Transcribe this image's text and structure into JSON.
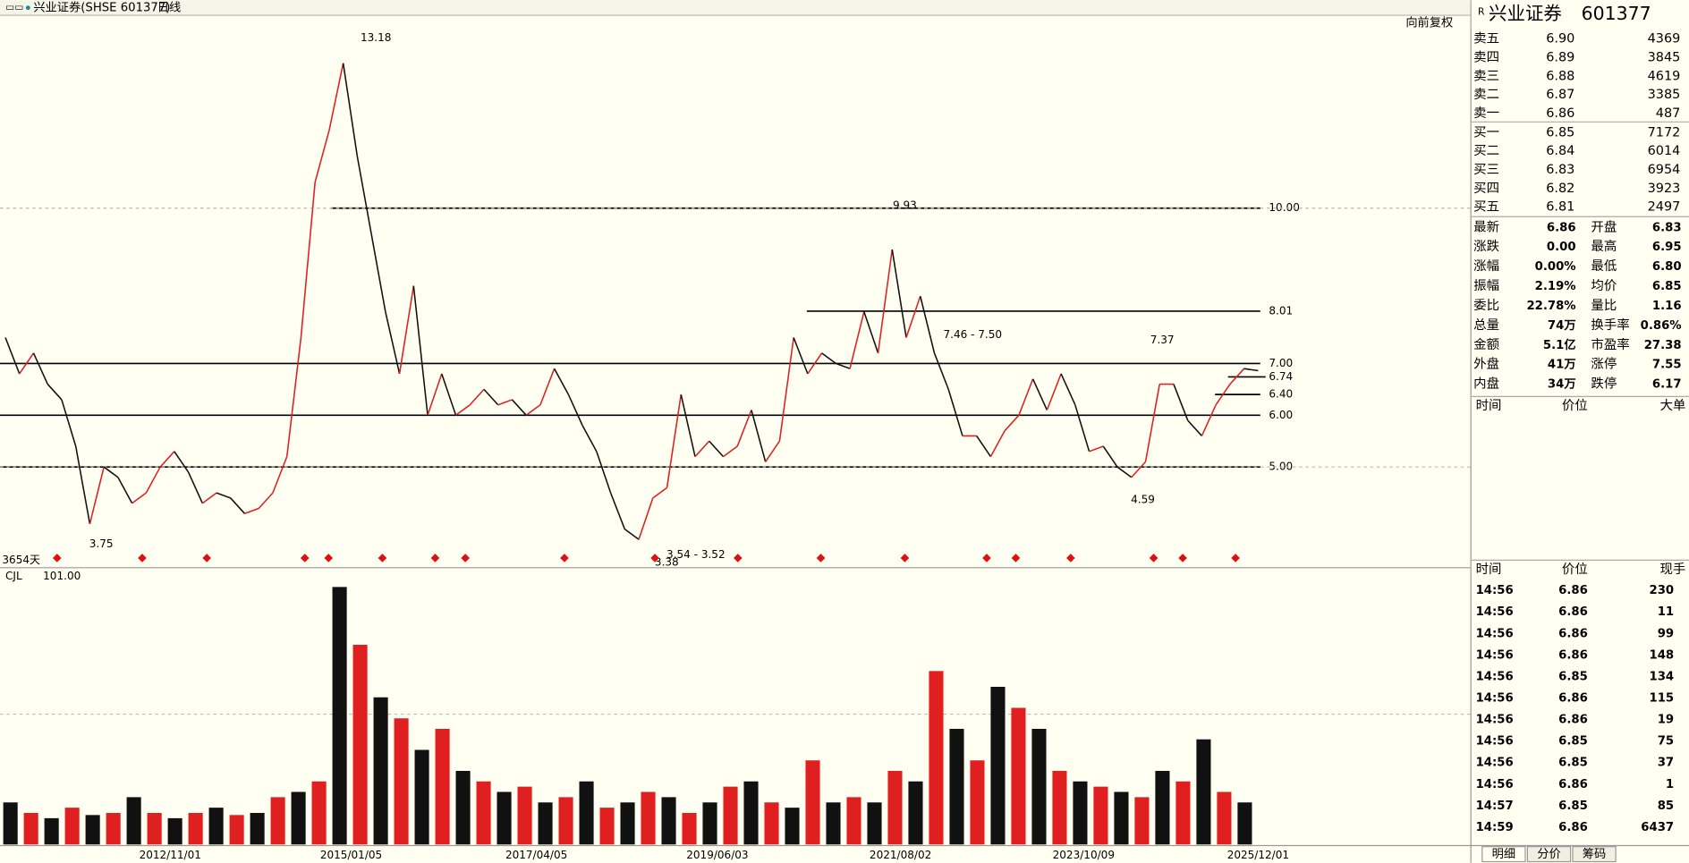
{
  "header": {
    "symbol": "兴业证券(SHSE 601377)",
    "period": "日线",
    "adjust": "向前复权"
  },
  "price_chart": {
    "days": "3654天",
    "close": [
      7.5,
      6.8,
      7.2,
      6.6,
      6.3,
      5.4,
      3.9,
      5.0,
      4.8,
      4.3,
      4.5,
      5.0,
      5.3,
      4.9,
      4.3,
      4.5,
      4.4,
      4.1,
      4.2,
      4.5,
      5.2,
      7.5,
      10.5,
      11.5,
      12.8,
      11.0,
      9.5,
      8.0,
      6.8,
      8.5,
      6.0,
      6.8,
      6.0,
      6.2,
      6.5,
      6.2,
      6.3,
      6.0,
      6.2,
      6.9,
      6.4,
      5.8,
      5.3,
      4.5,
      3.8,
      3.6,
      4.4,
      4.6,
      6.4,
      5.2,
      5.5,
      5.2,
      5.4,
      6.1,
      5.1,
      5.5,
      7.5,
      6.8,
      7.2,
      7.0,
      6.9,
      8.0,
      7.2,
      9.2,
      7.5,
      8.3,
      7.2,
      6.5,
      5.6,
      5.6,
      5.2,
      5.7,
      6.0,
      6.7,
      6.1,
      6.8,
      6.2,
      5.3,
      5.4,
      5.0,
      4.8,
      5.1,
      6.6,
      6.6,
      5.9,
      5.6,
      6.2,
      6.6,
      6.9,
      6.86
    ],
    "ylim": [
      3.2,
      13.6
    ],
    "yticks": [
      {
        "value": 10,
        "label": "10.00"
      },
      {
        "value": 8.01,
        "label": "8.01"
      },
      {
        "value": 7,
        "label": "7.00"
      },
      {
        "value": 6.74,
        "label": "6.74"
      },
      {
        "value": 6.4,
        "label": "6.40"
      },
      {
        "value": 6,
        "label": "6.00"
      },
      {
        "value": 5,
        "label": "5.00"
      }
    ],
    "annotations": [
      "13.18",
      "9.93",
      "7.37",
      "3.75",
      "3.38",
      "3.54 - 3.52",
      "4.59",
      "7.46 - 7.50"
    ],
    "dates": [
      "2012/11/01",
      "2015/01/05",
      "2017/04/05",
      "2019/06/03",
      "2021/08/02",
      "2023/10/09",
      "2025/12/01"
    ]
  },
  "volume_chart": {
    "indicator": "CJL",
    "value": "101.00",
    "ylim": [
      0,
      250
    ],
    "values": [
      40,
      30,
      25,
      35,
      28,
      30,
      45,
      30,
      25,
      30,
      35,
      28,
      30,
      45,
      50,
      60,
      245,
      190,
      140,
      120,
      90,
      110,
      70,
      60,
      50,
      55,
      40,
      45,
      60,
      35,
      40,
      50,
      45,
      30,
      40,
      55,
      60,
      40,
      35,
      80,
      40,
      45,
      40,
      70,
      60,
      165,
      110,
      80,
      150,
      130,
      110,
      70,
      60,
      55,
      50,
      45,
      70,
      60,
      100,
      50,
      40
    ]
  },
  "quote_panel": {
    "title": "兴业证券",
    "code": "601377",
    "order_book": [
      {
        "label": "卖五",
        "price": "6.90",
        "volume": "4369",
        "color": "#d83030"
      },
      {
        "label": "卖四",
        "price": "6.89",
        "volume": "3845",
        "color": "#d83030"
      },
      {
        "label": "卖三",
        "price": "6.88",
        "volume": "4619",
        "color": "#d83030"
      },
      {
        "label": "卖二",
        "price": "6.87",
        "volume": "3385",
        "color": "#d83030"
      },
      {
        "label": "卖一",
        "price": "6.86",
        "volume": "487",
        "color": "#000000"
      },
      {
        "label": "买一",
        "price": "6.85",
        "volume": "7172",
        "color": "#1a8796"
      },
      {
        "label": "买二",
        "price": "6.84",
        "volume": "6014",
        "color": "#1a8796"
      },
      {
        "label": "买三",
        "price": "6.83",
        "volume": "6954",
        "color": "#1a8796"
      },
      {
        "label": "买四",
        "price": "6.82",
        "volume": "3923",
        "color": "#1a8796"
      },
      {
        "label": "买五",
        "price": "6.81",
        "volume": "2497",
        "color": "#1a8796"
      }
    ],
    "stats": [
      [
        "最新",
        "6.86",
        "#000000",
        "开盘",
        "6.83",
        "#1a8796"
      ],
      [
        "涨跌",
        "0.00",
        "#000000",
        "最高",
        "6.95",
        "#d83030"
      ],
      [
        "涨幅",
        "0.00%",
        "#000000",
        "最低",
        "6.80",
        "#1a8796"
      ],
      [
        "振幅",
        "2.19%",
        "#1a8796",
        "均价",
        "6.85",
        "#1a8796"
      ],
      [
        "委比",
        "22.78%",
        "#1a8796",
        "量比",
        "1.16",
        "#1a8796"
      ],
      [
        "总量",
        "74万",
        "#1a8796",
        "换手率",
        "0.86%",
        "#1a8796"
      ],
      [
        "金额",
        "5.1亿",
        "#d83030",
        "市盈率",
        "27.38",
        "#1a8796"
      ],
      [
        "外盘",
        "41万",
        "#d83030",
        "涨停",
        "7.55",
        "#d83030"
      ],
      [
        "内盘",
        "34万",
        "#1a8796",
        "跌停",
        "6.17",
        "#1a8796"
      ]
    ],
    "big_header": [
      "时间",
      "价位",
      "大单"
    ],
    "ticks_header": [
      "时间",
      "价位",
      "现手"
    ],
    "ticks": [
      [
        "14:56",
        "6.86",
        "230",
        "#d83030"
      ],
      [
        "14:56",
        "6.86",
        "11",
        "#d83030"
      ],
      [
        "14:56",
        "6.86",
        "99",
        "#d83030"
      ],
      [
        "14:56",
        "6.86",
        "148",
        "#d83030"
      ],
      [
        "14:56",
        "6.85",
        "134",
        "#1a8796"
      ],
      [
        "14:56",
        "6.86",
        "115",
        "#d83030"
      ],
      [
        "14:56",
        "6.86",
        "19",
        "#d83030"
      ],
      [
        "14:56",
        "6.85",
        "75",
        "#1a8796"
      ],
      [
        "14:56",
        "6.85",
        "37",
        "#1a8796"
      ],
      [
        "14:56",
        "6.86",
        "1",
        "#d83030"
      ],
      [
        "14:57",
        "6.85",
        "85",
        "#1a8796"
      ],
      [
        "14:59",
        "6.86",
        "6437",
        "#d83030"
      ]
    ],
    "tabs": [
      "明细",
      "分价",
      "筹码"
    ]
  }
}
